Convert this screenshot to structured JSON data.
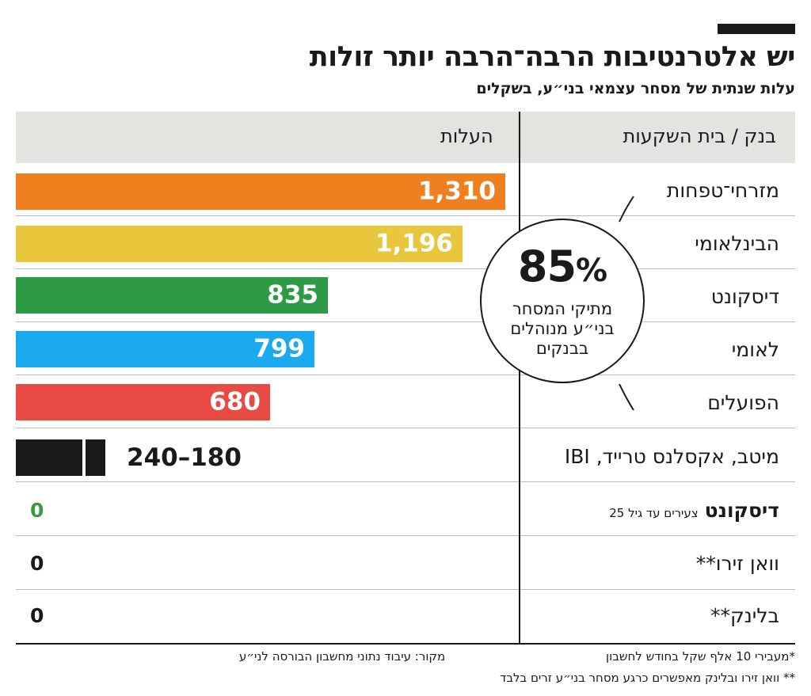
{
  "title": "יש אלטרנטיבות הרבה־הרבה יותר זולות",
  "subtitle": "עלות שנתית של מסחר עצמאי בני״ע, בשקלים",
  "header": {
    "bank_col": "בנק / בית השקעות",
    "cost_col": "העלות"
  },
  "colors": {
    "header_band": "#e3e4e0",
    "zero_green": "#3a9a44",
    "dark": "#1a1a1a"
  },
  "chart_data": {
    "type": "bar",
    "title": "יש אלטרנטיבות הרבה־הרבה יותר זולות",
    "subtitle": "עלות שנתית של מסחר עצמאי בני״ע, בשקלים",
    "categories": [
      "מזרחי־טפחות",
      "הבינלאומי",
      "דיסקונט",
      "לאומי",
      "הפועלים"
    ],
    "values": [
      1310,
      1196,
      835,
      799,
      680
    ],
    "value_labels": [
      "1,310",
      "1,196",
      "835",
      "799",
      "680"
    ],
    "colors": [
      "#f07f20",
      "#e8c73c",
      "#2f9a46",
      "#1ba9ef",
      "#e84b44"
    ],
    "xlim": [
      0,
      1310
    ],
    "range_row": {
      "label": "מיטב, אקסלנס טרייד, IBI",
      "min": 180,
      "max": 240,
      "text": "240–180"
    },
    "zero_rows": [
      {
        "name_main": "דיסקונט",
        "name_note": "צעירים עד גיל 25",
        "value": 0,
        "value_text": "0",
        "color": "#3a9a44"
      },
      {
        "name_main": "וואן זירו**",
        "name_note": "",
        "value": 0,
        "value_text": "0",
        "color": "#1a1a1a"
      },
      {
        "name_main": "בלינק**",
        "name_note": "",
        "value": 0,
        "value_text": "0",
        "color": "#1a1a1a"
      }
    ]
  },
  "callout": {
    "percent_number": "85",
    "percent_sign": "%",
    "line1": "מתיקי המסחר",
    "line2": "בני״ע מנוהלים",
    "line3": "בבנקים"
  },
  "footnotes": {
    "source": "מקור: עיבוד נתוני מחשבון הבורסה לני״ע",
    "note1": "*מעבירי 10 אלף שקל בחודש לחשבון",
    "note2": "** וואן זירו ובלינק מאפשרים כרגע מסחר בני״ע זרים בלבד"
  }
}
